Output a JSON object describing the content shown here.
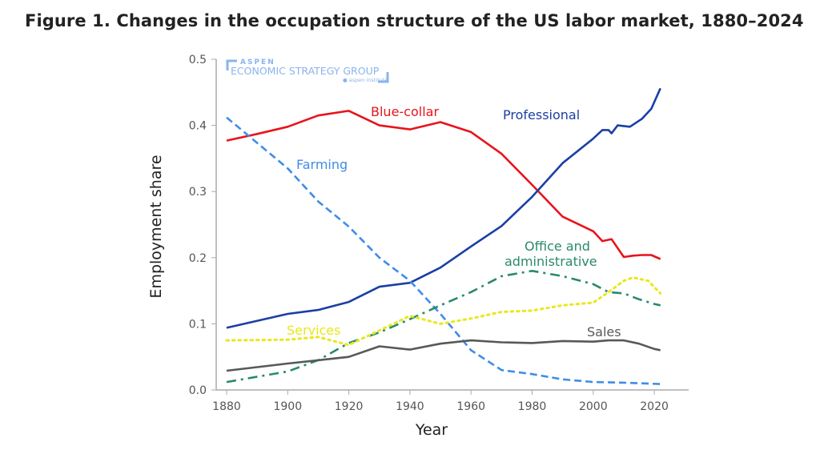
{
  "title": "Figure 1. Changes in the occupation structure of the US labor market, 1880–2024",
  "logo": {
    "line1": "ASPEN",
    "line2": "ECONOMIC STRATEGY GROUP",
    "line3": "aspen institute"
  },
  "chart_data": {
    "type": "line",
    "title": "Figure 1. Changes in the occupation structure of the US labor market, 1880–2024",
    "xlabel": "Year",
    "ylabel": "Employment share",
    "xlim": [
      1875,
      2035
    ],
    "ylim": [
      0,
      0.5
    ],
    "xticks": [
      1880,
      1900,
      1920,
      1940,
      1960,
      1980,
      2000,
      2020
    ],
    "yticks": [
      0.0,
      0.1,
      0.2,
      0.3,
      0.4,
      0.5
    ],
    "ytick_labels": [
      "0.0",
      "0.1",
      "0.2",
      "0.3",
      "0.4",
      "0.5"
    ],
    "grid": false,
    "legend": "inline labels",
    "series": [
      {
        "name": "Blue-collar",
        "color": "#e8141c",
        "style": "solid",
        "x": [
          1880,
          1890,
          1900,
          1910,
          1920,
          1930,
          1940,
          1950,
          1960,
          1970,
          1980,
          1990,
          2000,
          2003,
          2006,
          2010,
          2013,
          2016,
          2019,
          2022
        ],
        "y": [
          0.377,
          0.387,
          0.398,
          0.415,
          0.422,
          0.4,
          0.394,
          0.405,
          0.39,
          0.357,
          0.31,
          0.262,
          0.24,
          0.225,
          0.228,
          0.201,
          0.203,
          0.204,
          0.204,
          0.198
        ]
      },
      {
        "name": "Professional",
        "color": "#1a3fa5",
        "style": "solid",
        "x": [
          1880,
          1900,
          1910,
          1920,
          1930,
          1940,
          1950,
          1960,
          1970,
          1980,
          1990,
          2000,
          2003,
          2005,
          2006,
          2008,
          2012,
          2016,
          2019,
          2022
        ],
        "y": [
          0.094,
          0.115,
          0.121,
          0.133,
          0.156,
          0.162,
          0.185,
          0.217,
          0.248,
          0.292,
          0.343,
          0.38,
          0.393,
          0.393,
          0.388,
          0.4,
          0.398,
          0.41,
          0.425,
          0.456
        ]
      },
      {
        "name": "Farming",
        "color": "#3f8de8",
        "style": "dashed",
        "x": [
          1880,
          1900,
          1910,
          1920,
          1930,
          1940,
          1950,
          1960,
          1970,
          1980,
          1990,
          2000,
          2010,
          2022
        ],
        "y": [
          0.412,
          0.335,
          0.285,
          0.247,
          0.2,
          0.165,
          0.115,
          0.06,
          0.03,
          0.024,
          0.016,
          0.012,
          0.011,
          0.009
        ]
      },
      {
        "name": "Office and administrative",
        "color": "#2a8a6a",
        "style": "dashdot",
        "x": [
          1880,
          1900,
          1910,
          1920,
          1930,
          1940,
          1950,
          1960,
          1970,
          1980,
          1990,
          2000,
          2005,
          2010,
          2015,
          2020,
          2022
        ],
        "y": [
          0.012,
          0.028,
          0.045,
          0.071,
          0.087,
          0.107,
          0.128,
          0.148,
          0.172,
          0.18,
          0.172,
          0.16,
          0.148,
          0.146,
          0.137,
          0.13,
          0.128
        ]
      },
      {
        "name": "Services",
        "color": "#e8e81c",
        "style": "dotted",
        "x": [
          1880,
          1900,
          1910,
          1920,
          1930,
          1940,
          1950,
          1960,
          1970,
          1980,
          1990,
          2000,
          2005,
          2010,
          2013,
          2018,
          2022
        ],
        "y": [
          0.075,
          0.076,
          0.08,
          0.068,
          0.09,
          0.112,
          0.1,
          0.108,
          0.118,
          0.12,
          0.128,
          0.132,
          0.148,
          0.165,
          0.17,
          0.165,
          0.146
        ]
      },
      {
        "name": "Sales",
        "color": "#555a58",
        "style": "solid",
        "x": [
          1880,
          1900,
          1920,
          1930,
          1940,
          1950,
          1960,
          1970,
          1980,
          1990,
          2000,
          2005,
          2010,
          2015,
          2020,
          2022
        ],
        "y": [
          0.029,
          0.04,
          0.05,
          0.066,
          0.061,
          0.07,
          0.075,
          0.072,
          0.071,
          0.074,
          0.073,
          0.075,
          0.075,
          0.07,
          0.062,
          0.06
        ]
      }
    ]
  }
}
